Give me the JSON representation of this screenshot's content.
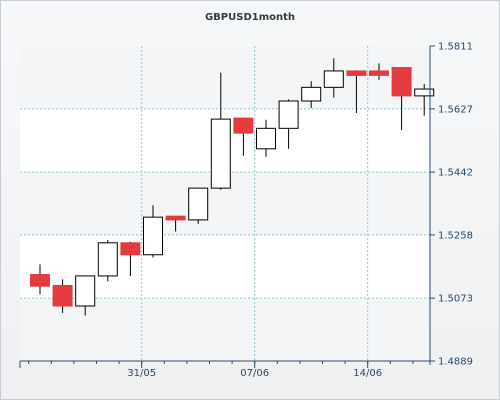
{
  "chart_data": {
    "type": "candlestick",
    "title": "GBPUSD1month",
    "xlabel": "",
    "ylabel": "",
    "ylim": [
      1.4889,
      1.5811
    ],
    "y_ticks": [
      "1.5811",
      "1.5627",
      "1.5442",
      "1.5258",
      "1.5073",
      "1.4889"
    ],
    "x_ticks": [
      {
        "label": "31/05",
        "index": 4.5
      },
      {
        "label": "07/06",
        "index": 9.5
      },
      {
        "label": "14/06",
        "index": 14.5
      }
    ],
    "grid": true,
    "up_color": "#ffffff",
    "down_color": "#e33b3f",
    "candles": [
      {
        "open": 1.5142,
        "high": 1.5172,
        "low": 1.5085,
        "close": 1.5108
      },
      {
        "open": 1.511,
        "high": 1.5128,
        "low": 1.503,
        "close": 1.505
      },
      {
        "open": 1.505,
        "high": 1.5138,
        "low": 1.5022,
        "close": 1.5138
      },
      {
        "open": 1.5138,
        "high": 1.5243,
        "low": 1.5122,
        "close": 1.5235
      },
      {
        "open": 1.5235,
        "high": 1.5238,
        "low": 1.5138,
        "close": 1.52
      },
      {
        "open": 1.52,
        "high": 1.5345,
        "low": 1.5192,
        "close": 1.531
      },
      {
        "open": 1.5313,
        "high": 1.5313,
        "low": 1.5268,
        "close": 1.5302
      },
      {
        "open": 1.5302,
        "high": 1.5395,
        "low": 1.529,
        "close": 1.5395
      },
      {
        "open": 1.5395,
        "high": 1.5733,
        "low": 1.539,
        "close": 1.5597
      },
      {
        "open": 1.56,
        "high": 1.56,
        "low": 1.549,
        "close": 1.5556
      },
      {
        "open": 1.551,
        "high": 1.5595,
        "low": 1.5487,
        "close": 1.557
      },
      {
        "open": 1.557,
        "high": 1.5655,
        "low": 1.551,
        "close": 1.565
      },
      {
        "open": 1.565,
        "high": 1.5708,
        "low": 1.563,
        "close": 1.569
      },
      {
        "open": 1.569,
        "high": 1.5775,
        "low": 1.566,
        "close": 1.5738
      },
      {
        "open": 1.5738,
        "high": 1.574,
        "low": 1.5615,
        "close": 1.5725
      },
      {
        "open": 1.5738,
        "high": 1.576,
        "low": 1.5712,
        "close": 1.5725
      },
      {
        "open": 1.5748,
        "high": 1.5748,
        "low": 1.5565,
        "close": 1.5665
      },
      {
        "open": 1.5665,
        "high": 1.57,
        "low": 1.5607,
        "close": 1.5685
      }
    ]
  }
}
